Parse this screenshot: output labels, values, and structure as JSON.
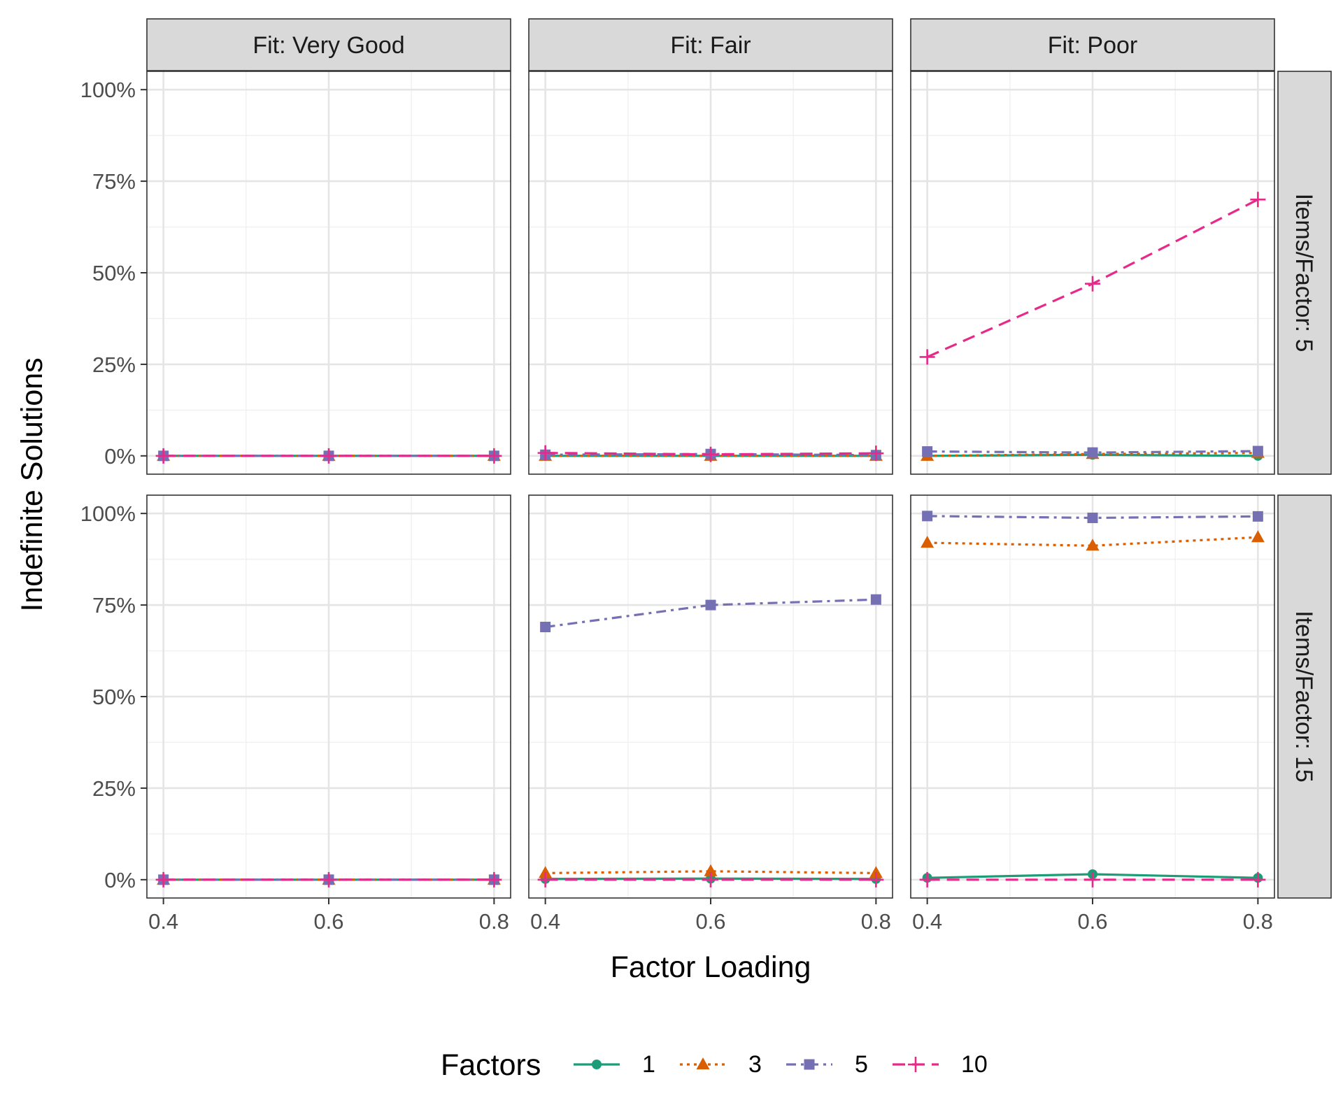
{
  "chart_data": {
    "type": "line",
    "facet_columns": [
      "Fit: Very Good",
      "Fit: Fair",
      "Fit: Poor"
    ],
    "facet_rows": [
      "Items/Factor: 5",
      "Items/Factor: 15"
    ],
    "xlabel": "Factor Loading",
    "ylabel": "Indefinite Solutions",
    "x_ticks": [
      0.4,
      0.6,
      0.8
    ],
    "x_tick_labels": [
      "0.4",
      "0.6",
      "0.8"
    ],
    "xlim": [
      0.38,
      0.82
    ],
    "y_ticks": [
      0,
      25,
      50,
      75,
      100
    ],
    "y_tick_labels": [
      "0%",
      "25%",
      "50%",
      "75%",
      "100%"
    ],
    "ylim": [
      -5,
      105
    ],
    "grid": true,
    "legend": {
      "title": "Factors",
      "placement": "bottom",
      "entries": [
        "1",
        "3",
        "5",
        "10"
      ]
    },
    "series_style": [
      {
        "name": "1",
        "color": "#1b9e77",
        "shape": "circle",
        "dash": "solid"
      },
      {
        "name": "3",
        "color": "#d95f02",
        "shape": "triangle",
        "dash": "dotted"
      },
      {
        "name": "5",
        "color": "#7570b3",
        "shape": "square",
        "dash": "dashdot"
      },
      {
        "name": "10",
        "color": "#e7298a",
        "shape": "plus",
        "dash": "dashed"
      }
    ],
    "panels": [
      {
        "row": 0,
        "col": 0,
        "series": [
          {
            "name": "1",
            "x": [
              0.4,
              0.6,
              0.8
            ],
            "y": [
              0,
              0,
              0
            ]
          },
          {
            "name": "3",
            "x": [
              0.4,
              0.6,
              0.8
            ],
            "y": [
              0,
              0,
              0
            ]
          },
          {
            "name": "5",
            "x": [
              0.4,
              0.6,
              0.8
            ],
            "y": [
              0,
              0,
              0
            ]
          },
          {
            "name": "10",
            "x": [
              0.4,
              0.6,
              0.8
            ],
            "y": [
              0,
              0,
              0
            ]
          }
        ]
      },
      {
        "row": 0,
        "col": 1,
        "series": [
          {
            "name": "1",
            "x": [
              0.4,
              0.6,
              0.8
            ],
            "y": [
              0,
              0,
              0
            ]
          },
          {
            "name": "3",
            "x": [
              0.4,
              0.6,
              0.8
            ],
            "y": [
              0,
              0,
              0
            ]
          },
          {
            "name": "5",
            "x": [
              0.4,
              0.6,
              0.8
            ],
            "y": [
              0.3,
              0.5,
              0.2
            ]
          },
          {
            "name": "10",
            "x": [
              0.4,
              0.6,
              0.8
            ],
            "y": [
              0.8,
              0.4,
              0.7
            ]
          }
        ]
      },
      {
        "row": 0,
        "col": 2,
        "series": [
          {
            "name": "1",
            "x": [
              0.4,
              0.6,
              0.8
            ],
            "y": [
              0,
              0.3,
              0
            ]
          },
          {
            "name": "3",
            "x": [
              0.4,
              0.6,
              0.8
            ],
            "y": [
              0,
              0.5,
              0.8
            ]
          },
          {
            "name": "5",
            "x": [
              0.4,
              0.6,
              0.8
            ],
            "y": [
              1.2,
              0.9,
              1.3
            ]
          },
          {
            "name": "10",
            "x": [
              0.4,
              0.6,
              0.8
            ],
            "y": [
              27,
              47,
              70
            ]
          }
        ]
      },
      {
        "row": 1,
        "col": 0,
        "series": [
          {
            "name": "1",
            "x": [
              0.4,
              0.6,
              0.8
            ],
            "y": [
              0,
              0,
              0
            ]
          },
          {
            "name": "3",
            "x": [
              0.4,
              0.6,
              0.8
            ],
            "y": [
              0,
              0,
              0
            ]
          },
          {
            "name": "5",
            "x": [
              0.4,
              0.6,
              0.8
            ],
            "y": [
              0,
              0,
              0
            ]
          },
          {
            "name": "10",
            "x": [
              0.4,
              0.6,
              0.8
            ],
            "y": [
              0,
              0,
              0
            ]
          }
        ]
      },
      {
        "row": 1,
        "col": 1,
        "series": [
          {
            "name": "1",
            "x": [
              0.4,
              0.6,
              0.8
            ],
            "y": [
              0.2,
              0.3,
              0.2
            ]
          },
          {
            "name": "3",
            "x": [
              0.4,
              0.6,
              0.8
            ],
            "y": [
              1.8,
              2.3,
              1.8
            ]
          },
          {
            "name": "5",
            "x": [
              0.4,
              0.6,
              0.8
            ],
            "y": [
              69,
              75,
              76.5
            ]
          },
          {
            "name": "10",
            "x": [
              0.4,
              0.6,
              0.8
            ],
            "y": [
              0,
              0,
              0
            ]
          }
        ]
      },
      {
        "row": 1,
        "col": 2,
        "series": [
          {
            "name": "1",
            "x": [
              0.4,
              0.6,
              0.8
            ],
            "y": [
              0.5,
              1.5,
              0.5
            ]
          },
          {
            "name": "3",
            "x": [
              0.4,
              0.6,
              0.8
            ],
            "y": [
              92,
              91.2,
              93.5
            ]
          },
          {
            "name": "5",
            "x": [
              0.4,
              0.6,
              0.8
            ],
            "y": [
              99.3,
              98.8,
              99.2
            ]
          },
          {
            "name": "10",
            "x": [
              0.4,
              0.6,
              0.8
            ],
            "y": [
              0,
              0,
              0
            ]
          }
        ]
      }
    ]
  }
}
